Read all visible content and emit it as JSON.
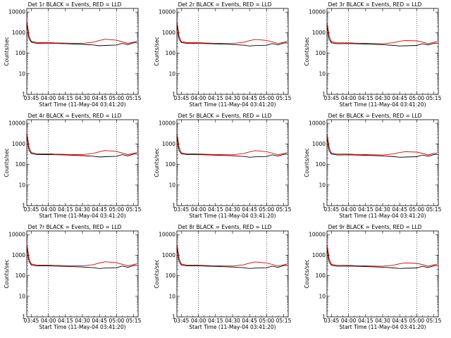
{
  "chart_data": [
    {
      "type": "line",
      "title": "Det 1r BLACK = Events, RED = LLD",
      "ylabel": "Counts/sec",
      "xlabel": "Start Time (11-May-04 03:41:20)",
      "x_ticks": [
        "03:45",
        "04:00",
        "04:15",
        "04:30",
        "04:45",
        "05:00",
        "05:15"
      ],
      "y_ticks": [
        "1",
        "10",
        "100",
        "1000",
        "10000"
      ],
      "yscale": "log",
      "ylim": [
        1,
        15000
      ],
      "xlim": [
        "03:41",
        "05:19"
      ],
      "markers": [
        "04:00",
        "05:00"
      ],
      "grid": false,
      "x": [
        "03:41",
        "03:43",
        "03:45",
        "03:50",
        "04:00",
        "04:05",
        "04:15",
        "04:30",
        "04:40",
        "04:45",
        "04:50",
        "05:00",
        "05:05",
        "05:10",
        "05:15",
        "05:18"
      ],
      "series": [
        {
          "name": "BLACK = Events",
          "color": "#000000",
          "values": [
            2600,
            500,
            340,
            300,
            310,
            300,
            290,
            270,
            250,
            230,
            240,
            250,
            300,
            260,
            320,
            330
          ]
        },
        {
          "name": "RED = LLD",
          "color": "#dd0000",
          "values": [
            4200,
            700,
            380,
            330,
            330,
            320,
            310,
            300,
            350,
            420,
            480,
            430,
            360,
            300,
            350,
            380
          ]
        }
      ]
    },
    {
      "type": "line",
      "title": "Det 2r BLACK = Events, RED = LLD",
      "ylabel": "Counts/sec",
      "xlabel": "Start Time (11-May-04 03:41:20)",
      "x_ticks": [
        "03:45",
        "04:00",
        "04:15",
        "04:30",
        "04:45",
        "05:00",
        "05:15"
      ],
      "y_ticks": [
        "1",
        "10",
        "100",
        "1000",
        "10000"
      ],
      "yscale": "log",
      "ylim": [
        1,
        15000
      ],
      "xlim": [
        "03:41",
        "05:19"
      ],
      "markers": [
        "04:00",
        "05:00"
      ],
      "grid": false,
      "x": [
        "03:41",
        "03:43",
        "03:45",
        "03:50",
        "04:00",
        "04:05",
        "04:15",
        "04:30",
        "04:40",
        "04:45",
        "04:50",
        "05:00",
        "05:05",
        "05:10",
        "05:15",
        "05:18"
      ],
      "series": [
        {
          "name": "BLACK = Events",
          "color": "#000000",
          "values": [
            2300,
            480,
            330,
            300,
            300,
            295,
            285,
            265,
            245,
            225,
            235,
            245,
            295,
            255,
            310,
            320
          ]
        },
        {
          "name": "RED = LLD",
          "color": "#dd0000",
          "values": [
            3900,
            680,
            370,
            325,
            325,
            315,
            305,
            295,
            345,
            410,
            470,
            420,
            355,
            295,
            345,
            370
          ]
        }
      ]
    },
    {
      "type": "line",
      "title": "Det 3r BLACK = Events, RED = LLD",
      "ylabel": "Counts/sec",
      "xlabel": "Start Time (11-May-04 03:41:20)",
      "x_ticks": [
        "03:45",
        "04:00",
        "04:15",
        "04:30",
        "04:45",
        "05:00",
        "05:15"
      ],
      "y_ticks": [
        "1",
        "10",
        "100",
        "1000",
        "10000"
      ],
      "yscale": "log",
      "ylim": [
        1,
        15000
      ],
      "xlim": [
        "03:41",
        "05:19"
      ],
      "markers": [
        "04:00",
        "05:00"
      ],
      "grid": false,
      "x": [
        "03:41",
        "03:43",
        "03:45",
        "03:50",
        "04:00",
        "04:05",
        "04:15",
        "04:30",
        "04:40",
        "04:45",
        "04:50",
        "05:00",
        "05:05",
        "05:10",
        "05:15",
        "05:18"
      ],
      "series": [
        {
          "name": "BLACK = Events",
          "color": "#000000",
          "values": [
            2100,
            460,
            320,
            290,
            295,
            290,
            280,
            260,
            240,
            225,
            230,
            240,
            290,
            250,
            300,
            310
          ]
        },
        {
          "name": "RED = LLD",
          "color": "#dd0000",
          "values": [
            3600,
            650,
            360,
            320,
            320,
            310,
            300,
            290,
            330,
            380,
            420,
            400,
            350,
            290,
            340,
            360
          ]
        }
      ]
    },
    {
      "type": "line",
      "title": "Det 4r BLACK = Events, RED = LLD",
      "ylabel": "Counts/sec",
      "xlabel": "Start Time (11-May-04 03:41:20)",
      "x_ticks": [
        "03:45",
        "04:00",
        "04:15",
        "04:30",
        "04:45",
        "05:00",
        "05:15"
      ],
      "y_ticks": [
        "1",
        "10",
        "100",
        "1000",
        "10000"
      ],
      "yscale": "log",
      "ylim": [
        1,
        15000
      ],
      "xlim": [
        "03:41",
        "05:19"
      ],
      "markers": [
        "04:00",
        "05:00"
      ],
      "grid": false,
      "x": [
        "03:41",
        "03:43",
        "03:45",
        "03:50",
        "04:00",
        "04:05",
        "04:15",
        "04:30",
        "04:40",
        "04:45",
        "04:50",
        "05:00",
        "05:05",
        "05:10",
        "05:15",
        "05:18"
      ],
      "series": [
        {
          "name": "BLACK = Events",
          "color": "#000000",
          "values": [
            2500,
            490,
            340,
            300,
            305,
            300,
            290,
            270,
            250,
            230,
            240,
            250,
            300,
            260,
            320,
            330
          ]
        },
        {
          "name": "RED = LLD",
          "color": "#dd0000",
          "values": [
            4000,
            690,
            380,
            330,
            330,
            320,
            310,
            300,
            350,
            420,
            480,
            430,
            360,
            300,
            350,
            380
          ]
        }
      ]
    },
    {
      "type": "line",
      "title": "Det 5r BLACK = Events, RED = LLD",
      "ylabel": "Counts/sec",
      "xlabel": "Start Time (11-May-04 03:41:20)",
      "x_ticks": [
        "03:45",
        "04:00",
        "04:15",
        "04:30",
        "04:45",
        "05:00",
        "05:15"
      ],
      "y_ticks": [
        "1",
        "10",
        "100",
        "1000",
        "10000"
      ],
      "yscale": "log",
      "ylim": [
        1,
        15000
      ],
      "xlim": [
        "03:41",
        "05:19"
      ],
      "markers": [
        "04:00",
        "05:00"
      ],
      "grid": false,
      "x": [
        "03:41",
        "03:43",
        "03:45",
        "03:50",
        "04:00",
        "04:05",
        "04:15",
        "04:30",
        "04:40",
        "04:45",
        "04:50",
        "05:00",
        "05:05",
        "05:10",
        "05:15",
        "05:18"
      ],
      "series": [
        {
          "name": "BLACK = Events",
          "color": "#000000",
          "values": [
            2200,
            470,
            330,
            300,
            300,
            295,
            285,
            265,
            245,
            225,
            235,
            245,
            295,
            255,
            310,
            320
          ]
        },
        {
          "name": "RED = LLD",
          "color": "#dd0000",
          "values": [
            3800,
            670,
            370,
            325,
            325,
            315,
            305,
            295,
            345,
            410,
            470,
            420,
            355,
            295,
            345,
            370
          ]
        }
      ]
    },
    {
      "type": "line",
      "title": "Det 6r BLACK = Events, RED = LLD",
      "ylabel": "Counts/sec",
      "xlabel": "Start Time (11-May-04 03:41:20)",
      "x_ticks": [
        "03:45",
        "04:00",
        "04:15",
        "04:30",
        "04:45",
        "05:00",
        "05:15"
      ],
      "y_ticks": [
        "1",
        "10",
        "100",
        "1000",
        "10000"
      ],
      "yscale": "log",
      "ylim": [
        1,
        15000
      ],
      "xlim": [
        "03:41",
        "05:19"
      ],
      "markers": [
        "04:00",
        "05:00"
      ],
      "grid": false,
      "x": [
        "03:41",
        "03:43",
        "03:45",
        "03:50",
        "04:00",
        "04:05",
        "04:15",
        "04:30",
        "04:40",
        "04:45",
        "04:50",
        "05:00",
        "05:05",
        "05:10",
        "05:15",
        "05:18"
      ],
      "series": [
        {
          "name": "BLACK = Events",
          "color": "#000000",
          "values": [
            2000,
            450,
            320,
            290,
            295,
            290,
            280,
            260,
            240,
            225,
            230,
            240,
            290,
            250,
            300,
            310
          ]
        },
        {
          "name": "RED = LLD",
          "color": "#dd0000",
          "values": [
            3500,
            640,
            360,
            320,
            320,
            310,
            300,
            290,
            330,
            380,
            420,
            400,
            350,
            290,
            340,
            360
          ]
        }
      ]
    },
    {
      "type": "line",
      "title": "Det 7r BLACK = Events, RED = LLD",
      "ylabel": "Counts/sec",
      "xlabel": "Start Time (11-May-04 03:41:20)",
      "x_ticks": [
        "03:45",
        "04:00",
        "04:15",
        "04:30",
        "04:45",
        "05:00",
        "05:15"
      ],
      "y_ticks": [
        "1",
        "10",
        "100",
        "1000",
        "10000"
      ],
      "yscale": "log",
      "ylim": [
        1,
        15000
      ],
      "xlim": [
        "03:41",
        "05:19"
      ],
      "markers": [
        "04:00",
        "05:00"
      ],
      "grid": false,
      "x": [
        "03:41",
        "03:43",
        "03:45",
        "03:50",
        "04:00",
        "04:05",
        "04:15",
        "04:30",
        "04:40",
        "04:45",
        "04:50",
        "05:00",
        "05:05",
        "05:10",
        "05:15",
        "05:18"
      ],
      "series": [
        {
          "name": "BLACK = Events",
          "color": "#000000",
          "values": [
            2400,
            490,
            330,
            300,
            300,
            295,
            285,
            265,
            245,
            225,
            235,
            245,
            295,
            255,
            310,
            320
          ]
        },
        {
          "name": "RED = LLD",
          "color": "#dd0000",
          "values": [
            4000,
            690,
            375,
            330,
            330,
            320,
            310,
            300,
            350,
            420,
            480,
            430,
            360,
            300,
            350,
            380
          ]
        }
      ]
    },
    {
      "type": "line",
      "title": "Det 8r BLACK = Events, RED = LLD",
      "ylabel": "Counts/sec",
      "xlabel": "Start Time (11-May-04 03:41:20)",
      "x_ticks": [
        "03:45",
        "04:00",
        "04:15",
        "04:30",
        "04:45",
        "05:00",
        "05:15"
      ],
      "y_ticks": [
        "1",
        "10",
        "100",
        "1000",
        "10000"
      ],
      "yscale": "log",
      "ylim": [
        1,
        15000
      ],
      "xlim": [
        "03:41",
        "05:19"
      ],
      "markers": [
        "04:00",
        "05:00"
      ],
      "grid": false,
      "x": [
        "03:41",
        "03:43",
        "03:45",
        "03:50",
        "04:00",
        "04:05",
        "04:15",
        "04:30",
        "04:40",
        "04:45",
        "04:50",
        "05:00",
        "05:05",
        "05:10",
        "05:15",
        "05:18"
      ],
      "series": [
        {
          "name": "BLACK = Events",
          "color": "#000000",
          "values": [
            2300,
            480,
            330,
            300,
            300,
            295,
            285,
            265,
            245,
            225,
            235,
            245,
            295,
            255,
            310,
            320
          ]
        },
        {
          "name": "RED = LLD",
          "color": "#dd0000",
          "values": [
            3900,
            680,
            370,
            325,
            325,
            315,
            305,
            295,
            345,
            410,
            470,
            420,
            355,
            295,
            345,
            370
          ]
        }
      ]
    },
    {
      "type": "line",
      "title": "Det 9r BLACK = Events, RED = LLD",
      "ylabel": "Counts/sec",
      "xlabel": "Start Time (11-May-04 03:41:20)",
      "x_ticks": [
        "03:45",
        "04:00",
        "04:15",
        "04:30",
        "04:45",
        "05:00",
        "05:15"
      ],
      "y_ticks": [
        "1",
        "10",
        "100",
        "1000",
        "10000"
      ],
      "yscale": "log",
      "ylim": [
        1,
        15000
      ],
      "xlim": [
        "03:41",
        "05:19"
      ],
      "markers": [
        "04:00",
        "05:00"
      ],
      "grid": false,
      "x": [
        "03:41",
        "03:43",
        "03:45",
        "03:50",
        "04:00",
        "04:05",
        "04:15",
        "04:30",
        "04:40",
        "04:45",
        "04:50",
        "05:00",
        "05:05",
        "05:10",
        "05:15",
        "05:18"
      ],
      "series": [
        {
          "name": "BLACK = Events",
          "color": "#000000",
          "values": [
            2100,
            460,
            320,
            290,
            295,
            290,
            280,
            260,
            240,
            225,
            230,
            240,
            290,
            250,
            300,
            310
          ]
        },
        {
          "name": "RED = LLD",
          "color": "#dd0000",
          "values": [
            3600,
            650,
            360,
            320,
            320,
            310,
            300,
            290,
            330,
            380,
            420,
            400,
            350,
            290,
            340,
            360
          ]
        }
      ]
    }
  ]
}
